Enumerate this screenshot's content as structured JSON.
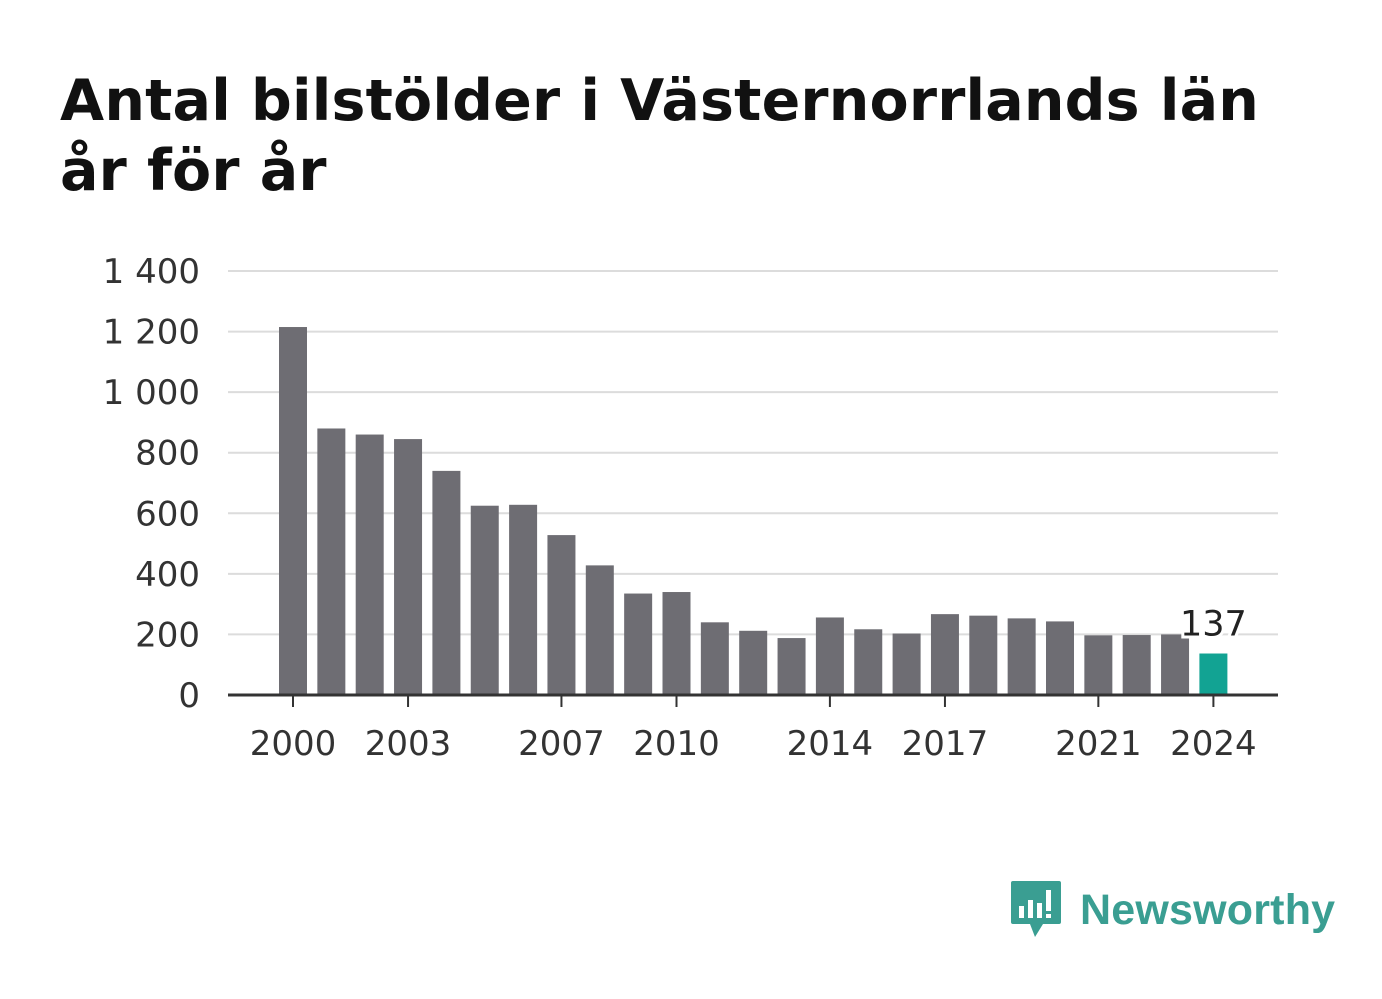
{
  "title": "Antal bilstölder i Västernorrlands län år för år",
  "brand": {
    "name": "Newsworthy",
    "logo_icon": "newsworthy-bar-chart-speech-bubble-icon"
  },
  "colors": {
    "bar": "#6e6d73",
    "highlight": "#12a393",
    "grid": "#dcdcdc",
    "axis": "#333333",
    "brand": "#3a9e92"
  },
  "chart_data": {
    "type": "bar",
    "title": "Antal bilstölder i Västernorrlands län år för år",
    "xlabel": "",
    "ylabel": "",
    "ylim": [
      0,
      1400
    ],
    "yticks": [
      0,
      200,
      400,
      600,
      800,
      1000,
      1200,
      1400
    ],
    "ytick_labels": [
      "0",
      "200",
      "400",
      "600",
      "800",
      "1 000",
      "1 200",
      "1 400"
    ],
    "xtick_labels": [
      "2000",
      "2003",
      "2007",
      "2010",
      "2014",
      "2017",
      "2021",
      "2024"
    ],
    "grid": true,
    "categories": [
      "2000",
      "2001",
      "2002",
      "2003",
      "2004",
      "2005",
      "2006",
      "2007",
      "2008",
      "2009",
      "2010",
      "2011",
      "2012",
      "2013",
      "2014",
      "2015",
      "2016",
      "2017",
      "2018",
      "2019",
      "2020",
      "2021",
      "2022",
      "2023",
      "2024"
    ],
    "values": [
      1215,
      880,
      860,
      845,
      740,
      625,
      628,
      528,
      428,
      335,
      340,
      240,
      212,
      188,
      256,
      217,
      203,
      267,
      262,
      253,
      243,
      197,
      198,
      200,
      137
    ],
    "highlight_index": 24,
    "data_labels": [
      {
        "index": 24,
        "text": "137"
      }
    ]
  }
}
